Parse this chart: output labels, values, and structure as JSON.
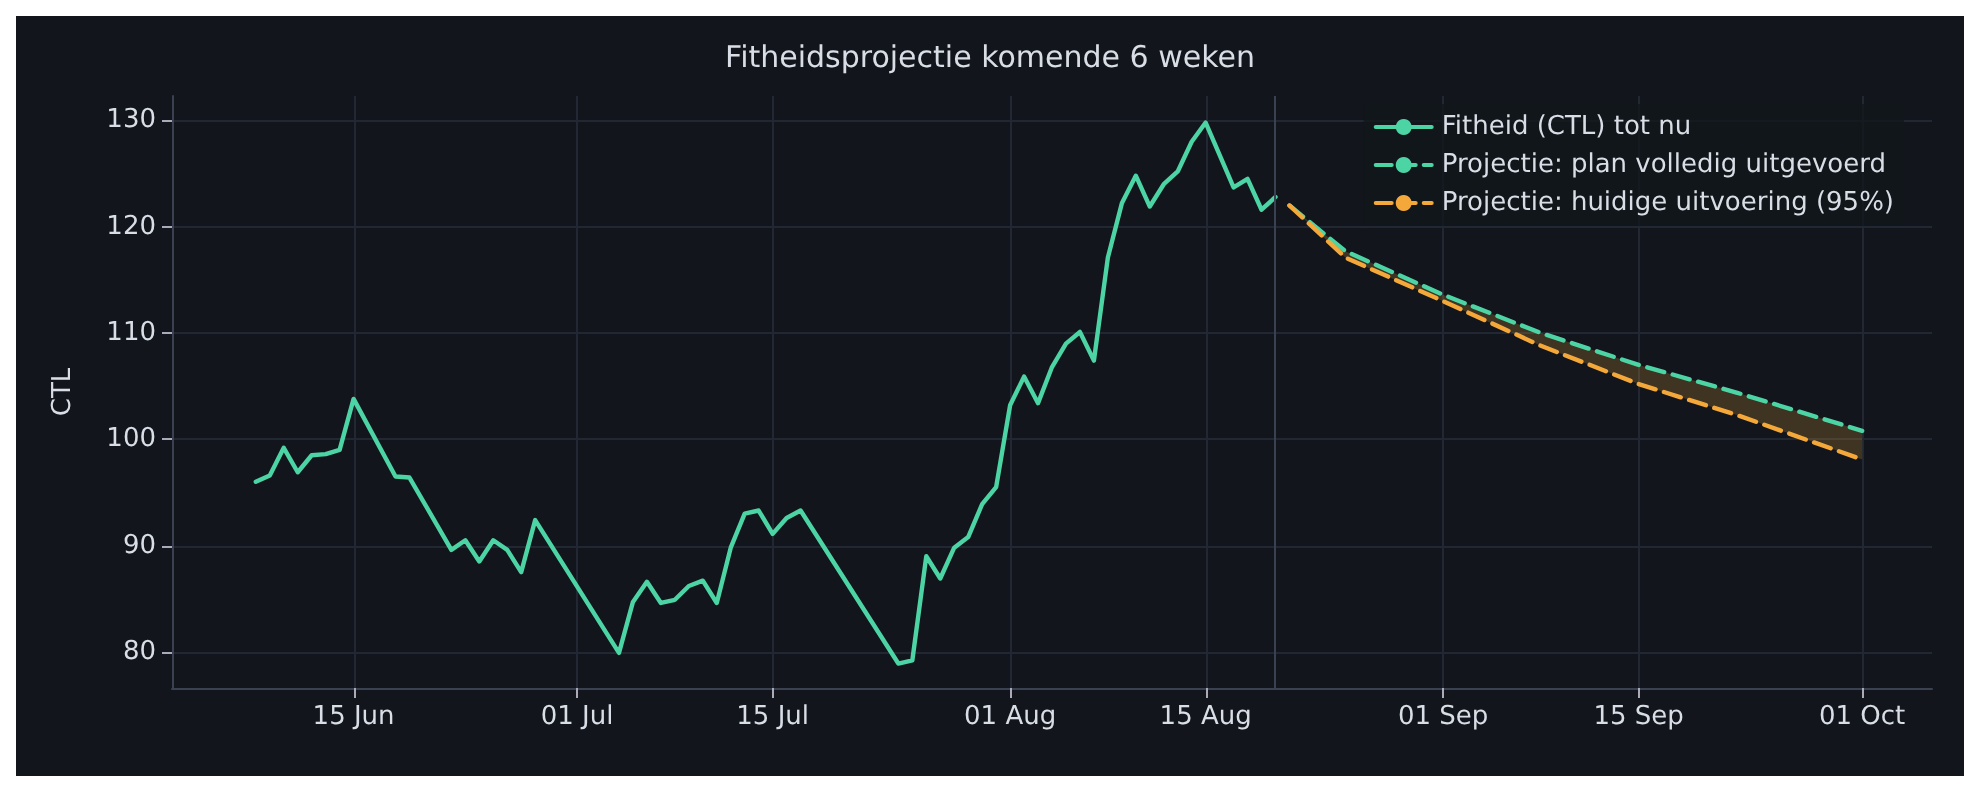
{
  "chart_data": {
    "type": "line",
    "title": "Fitheidsprojectie komende 6 weken",
    "ylabel": "CTL",
    "xlim": [
      "--06-02",
      "--10-06"
    ],
    "xticks": [
      {
        "value": "--06-15",
        "label": "15 Jun"
      },
      {
        "value": "--07-01",
        "label": "01 Jul"
      },
      {
        "value": "--07-15",
        "label": "15 Jul"
      },
      {
        "value": "--08-01",
        "label": "01 Aug"
      },
      {
        "value": "--08-15",
        "label": "15 Aug"
      },
      {
        "value": "--09-01",
        "label": "01 Sep"
      },
      {
        "value": "--09-15",
        "label": "15 Sep"
      },
      {
        "value": "--10-01",
        "label": "01 Oct"
      }
    ],
    "ylim": [
      76.6,
      132.3
    ],
    "yticks": [
      80,
      90,
      100,
      110,
      120,
      130
    ],
    "grid": true,
    "legend": "top right",
    "marker": "none",
    "ref_lines": [
      {
        "axis": "x",
        "value": "--08-20",
        "label": null,
        "color": "#3a4150"
      }
    ],
    "series": [
      {
        "name": "Fitheid (CTL) tot nu",
        "color": "#4dd4a4",
        "line_style": "solid",
        "x": [
          "--06-08",
          "--06-09",
          "--06-10",
          "--06-11",
          "--06-12",
          "--06-13",
          "--06-14",
          "--06-15",
          "--06-18",
          "--06-19",
          "--06-22",
          "--06-23",
          "--06-24",
          "--06-25",
          "--06-26",
          "--06-27",
          "--06-28",
          "--07-04",
          "--07-05",
          "--07-06",
          "--07-07",
          "--07-08",
          "--07-09",
          "--07-10",
          "--07-11",
          "--07-12",
          "--07-13",
          "--07-14",
          "--07-15",
          "--07-16",
          "--07-17",
          "--07-24",
          "--07-25",
          "--07-26",
          "--07-27",
          "--07-28",
          "--07-29",
          "--07-30",
          "--07-31",
          "--08-01",
          "--08-02",
          "--08-03",
          "--08-04",
          "--08-05",
          "--08-06",
          "--08-07",
          "--08-08",
          "--08-09",
          "--08-10",
          "--08-11",
          "--08-12",
          "--08-13",
          "--08-14",
          "--08-15",
          "--08-17",
          "--08-18",
          "--08-19",
          "--08-20"
        ],
        "values": [
          96.0,
          96.6,
          99.2,
          96.9,
          98.5,
          98.6,
          99.0,
          103.8,
          96.5,
          96.4,
          89.6,
          90.5,
          88.5,
          90.5,
          89.6,
          87.5,
          92.4,
          79.9,
          84.7,
          86.6,
          84.6,
          84.9,
          86.2,
          86.7,
          84.6,
          89.8,
          93.0,
          93.3,
          91.1,
          92.6,
          93.3,
          78.9,
          79.2,
          89.0,
          86.9,
          89.8,
          90.8,
          93.9,
          95.5,
          103.2,
          105.9,
          103.4,
          106.8,
          109.0,
          110.1,
          107.4,
          117.1,
          122.2,
          124.8,
          121.9,
          124.0,
          125.2,
          128.0,
          129.8,
          123.7,
          124.5,
          121.6,
          122.8
        ]
      },
      {
        "name": "Projectie: plan volledig uitgevoerd",
        "color": "#4dd4a4",
        "line_style": "dashed",
        "x": [
          "--08-21",
          "--08-25",
          "--09-01",
          "--09-08",
          "--09-15",
          "--09-22",
          "--10-01"
        ],
        "values": [
          122.0,
          117.7,
          113.6,
          110.0,
          107.0,
          104.4,
          100.8
        ]
      },
      {
        "name": "Projectie: huidige uitvoering (95%)",
        "color": "#f5a83a",
        "line_style": "dashed",
        "x": [
          "--08-21",
          "--08-25",
          "--09-01",
          "--09-08",
          "--09-15",
          "--09-22",
          "--10-01"
        ],
        "values": [
          122.0,
          117.1,
          113.0,
          108.8,
          105.2,
          102.3,
          98.1
        ]
      }
    ]
  }
}
